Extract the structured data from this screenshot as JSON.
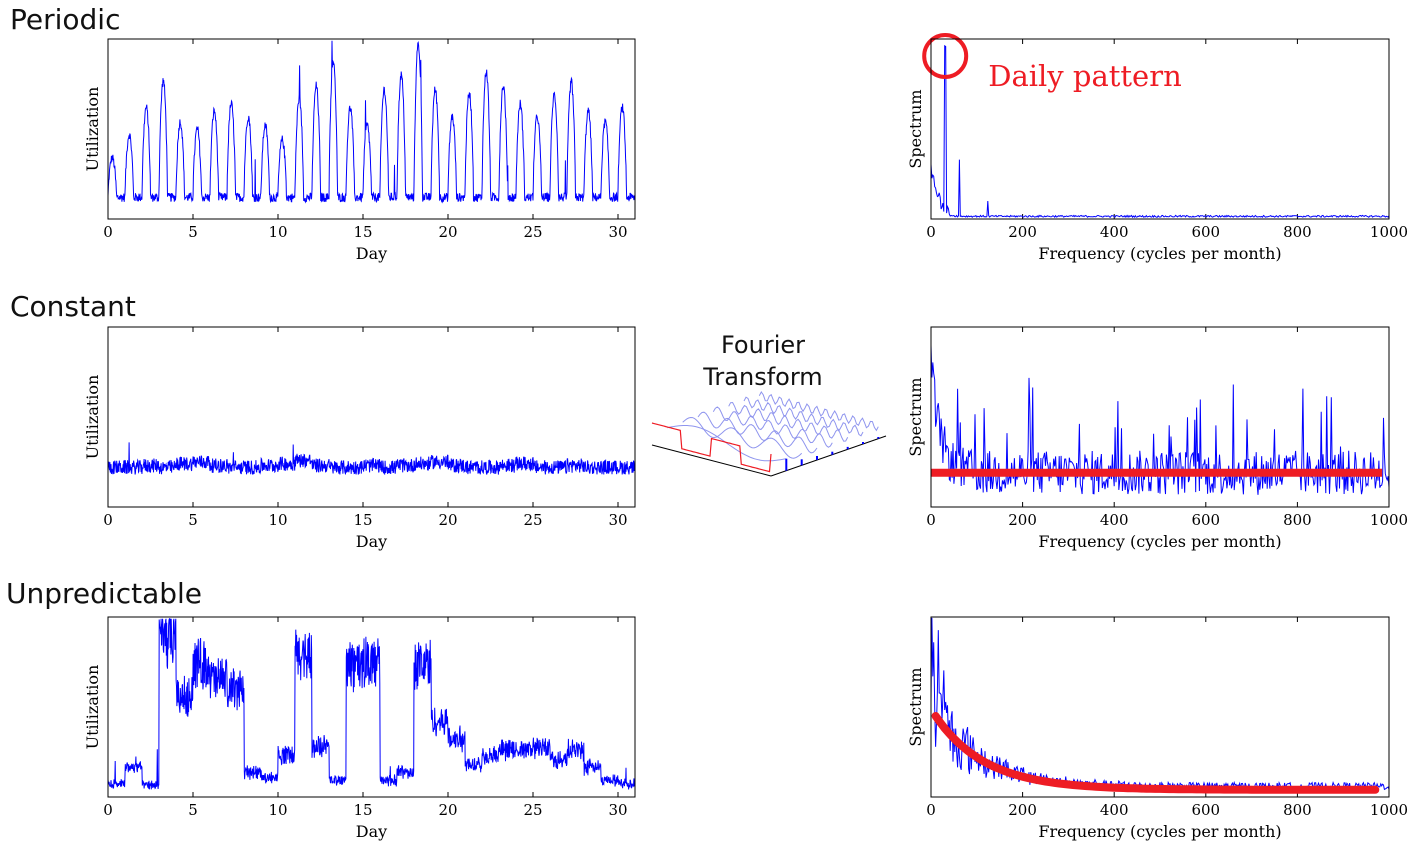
{
  "rows": [
    {
      "title": "Periodic"
    },
    {
      "title": "Constant"
    },
    {
      "title": "Unpredictable"
    }
  ],
  "center": {
    "line1": "Fourier",
    "line2": "Transform"
  },
  "annotation": {
    "label": "Daily pattern",
    "color": "#ee1c24"
  },
  "colors": {
    "series": "#0000ff",
    "highlight": "#ee1c24",
    "axes": "#000000"
  },
  "chart_data": [
    {
      "type": "line",
      "row": 0,
      "panel": "time",
      "ylabel": "Utilization",
      "xlabel": "Day",
      "xlim": [
        0,
        31
      ],
      "xticks": [
        0,
        5,
        10,
        15,
        20,
        25,
        30
      ],
      "yticks": [],
      "pattern": "periodic",
      "series": [
        {
          "values": [
            0.32,
            0.45,
            0.6,
            0.75,
            0.52,
            0.48,
            0.58,
            0.62,
            0.55,
            0.5,
            0.42,
            0.65,
            0.72,
            0.85,
            0.6,
            0.5,
            0.7,
            0.78,
            0.95,
            0.7,
            0.55,
            0.68,
            0.8,
            0.72,
            0.62,
            0.55,
            0.67,
            0.74,
            0.58,
            0.52,
            0.6
          ]
        }
      ]
    },
    {
      "type": "line",
      "row": 0,
      "panel": "spectrum",
      "ylabel": "Spectrum",
      "xlabel": "Frequency (cycles per month)",
      "xlim": [
        0,
        1000
      ],
      "xticks": [
        0,
        200,
        400,
        600,
        800,
        1000
      ],
      "yticks": [],
      "peaks": [
        {
          "x": 31,
          "y": 0.92
        },
        {
          "x": 62,
          "y": 0.33
        },
        {
          "x": 124,
          "y": 0.1
        }
      ],
      "annotation": {
        "x": 31,
        "label": "Daily pattern"
      }
    },
    {
      "type": "line",
      "row": 1,
      "panel": "time",
      "ylabel": "Utilization",
      "xlabel": "Day",
      "xlim": [
        0,
        31
      ],
      "xticks": [
        0,
        5,
        10,
        15,
        20,
        25,
        30
      ],
      "yticks": [],
      "pattern": "constant",
      "series": [
        {
          "values": [
            0.22,
            0.22,
            0.23,
            0.22,
            0.24,
            0.25,
            0.23,
            0.22,
            0.22,
            0.23,
            0.24,
            0.26,
            0.23,
            0.22,
            0.22,
            0.23,
            0.22,
            0.23,
            0.24,
            0.25,
            0.23,
            0.22,
            0.22,
            0.23,
            0.24,
            0.22,
            0.22,
            0.23,
            0.22,
            0.22,
            0.22
          ]
        }
      ]
    },
    {
      "type": "line",
      "row": 1,
      "panel": "spectrum",
      "ylabel": "Spectrum",
      "xlabel": "Frequency (cycles per month)",
      "xlim": [
        0,
        1000
      ],
      "xticks": [
        0,
        200,
        400,
        600,
        800,
        1000
      ],
      "yticks": [],
      "trend": {
        "shape": "flat",
        "level": 0.19
      }
    },
    {
      "type": "line",
      "row": 2,
      "panel": "time",
      "ylabel": "Utilization",
      "xlabel": "Day",
      "xlim": [
        0,
        31
      ],
      "xticks": [
        0,
        5,
        10,
        15,
        20,
        25,
        30
      ],
      "yticks": [],
      "pattern": "unpredictable",
      "series": [
        {
          "values": [
            0.08,
            0.18,
            0.07,
            0.95,
            0.6,
            0.8,
            0.7,
            0.65,
            0.15,
            0.12,
            0.25,
            0.85,
            0.3,
            0.1,
            0.8,
            0.8,
            0.1,
            0.15,
            0.8,
            0.45,
            0.35,
            0.2,
            0.25,
            0.28,
            0.28,
            0.3,
            0.22,
            0.28,
            0.18,
            0.1,
            0.08
          ]
        }
      ]
    },
    {
      "type": "line",
      "row": 2,
      "panel": "spectrum",
      "ylabel": "Spectrum",
      "xlabel": "Frequency (cycles per month)",
      "xlim": [
        0,
        1000
      ],
      "xticks": [
        0,
        200,
        400,
        600,
        800,
        1000
      ],
      "yticks": [],
      "trend": {
        "shape": "decay",
        "start": 0.45,
        "floor": 0.04
      }
    }
  ]
}
